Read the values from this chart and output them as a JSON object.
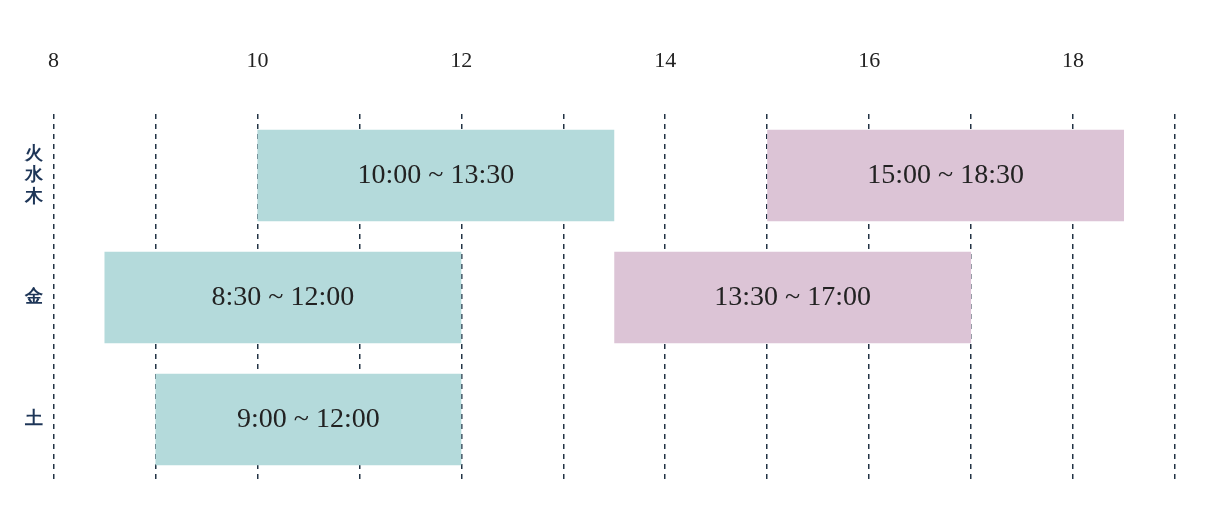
{
  "chart_data": {
    "type": "bar",
    "orientation": "horizontal",
    "categories": [
      "火水木",
      "金",
      "土"
    ],
    "series": [
      {
        "color": "#b4dadb",
        "base": [
          10,
          8.5,
          9
        ],
        "values": [
          3.5,
          3.5,
          3
        ],
        "value_labels": [
          "10:00 ~ 13:30",
          "8:30 ~ 12:00",
          "9:00 ~ 12:00"
        ]
      },
      {
        "color": "#dcc4d6",
        "base": [
          15,
          13.5,
          null
        ],
        "values": [
          3.5,
          3.5,
          null
        ],
        "value_labels": [
          "15:00 ~ 18:30",
          "13:30 ~ 17:00",
          null
        ]
      }
    ],
    "xlim": [
      8,
      19
    ],
    "xticks": [
      8,
      {
        "value": 9,
        "label": null
      },
      10,
      {
        "value": 11,
        "label": null
      },
      12,
      {
        "value": 13,
        "label": null
      },
      14,
      {
        "value": 15,
        "label": null
      },
      16,
      {
        "value": 17,
        "label": null
      },
      18,
      {
        "value": 19,
        "label": null
      }
    ],
    "grid": "x",
    "legend": false
  }
}
